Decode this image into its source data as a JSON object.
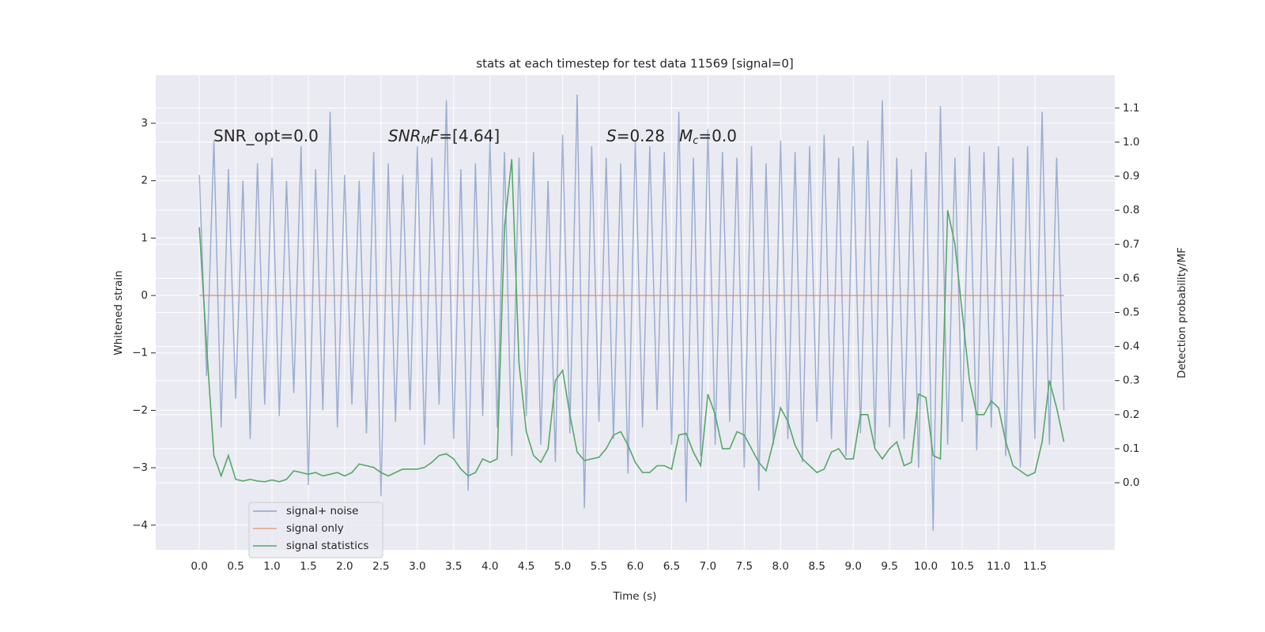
{
  "chart_data": {
    "type": "line",
    "title": "stats at each timestep for test data 11569 [signal=0]",
    "xlabel": "Time (s)",
    "ylabel": "Whitened strain",
    "y2label": "Detection probability/MF",
    "annotations": [
      [
        {
          "text": "SNR_opt=0.0",
          "style": "normal"
        }
      ],
      [
        {
          "text": "SNR",
          "style": "italic"
        },
        {
          "text": "M",
          "style": "sub"
        },
        {
          "text": "F",
          "style": "italic"
        },
        {
          "text": "=[4.64]",
          "style": "normal"
        }
      ],
      [
        {
          "text": "S",
          "style": "italic"
        },
        {
          "text": "=0.28",
          "style": "normal"
        }
      ],
      [
        {
          "text": "M",
          "style": "italic"
        },
        {
          "text": "c",
          "style": "sub"
        },
        {
          "text": "=0.0",
          "style": "normal"
        }
      ]
    ],
    "x": [
      0.0,
      0.1,
      0.2,
      0.3,
      0.4,
      0.5,
      0.6,
      0.7,
      0.8,
      0.9,
      1.0,
      1.1,
      1.2,
      1.3,
      1.4,
      1.5,
      1.6,
      1.7,
      1.8,
      1.9,
      2.0,
      2.1,
      2.2,
      2.3,
      2.4,
      2.5,
      2.6,
      2.7,
      2.8,
      2.9,
      3.0,
      3.1,
      3.2,
      3.3,
      3.4,
      3.5,
      3.6,
      3.7,
      3.8,
      3.9,
      4.0,
      4.1,
      4.2,
      4.3,
      4.4,
      4.5,
      4.6,
      4.7,
      4.8,
      4.9,
      5.0,
      5.1,
      5.2,
      5.3,
      5.4,
      5.5,
      5.6,
      5.7,
      5.8,
      5.9,
      6.0,
      6.1,
      6.2,
      6.3,
      6.4,
      6.5,
      6.6,
      6.7,
      6.8,
      6.9,
      7.0,
      7.1,
      7.2,
      7.3,
      7.4,
      7.5,
      7.6,
      7.7,
      7.8,
      7.9,
      8.0,
      8.1,
      8.2,
      8.3,
      8.4,
      8.5,
      8.6,
      8.7,
      8.8,
      8.9,
      9.0,
      9.1,
      9.2,
      9.3,
      9.4,
      9.5,
      9.6,
      9.7,
      9.8,
      9.9,
      10.0,
      10.1,
      10.2,
      10.3,
      10.4,
      10.5,
      10.6,
      10.7,
      10.8,
      10.9,
      11.0,
      11.1,
      11.2,
      11.3,
      11.4,
      11.5,
      11.6,
      11.7,
      11.8,
      11.9
    ],
    "series": [
      {
        "name": "signal+ noise",
        "color": "#4c72b0",
        "axis": "y",
        "values": [
          2.1,
          -1.4,
          2.7,
          -2.3,
          2.2,
          -1.8,
          2.0,
          -2.5,
          2.3,
          -1.9,
          2.4,
          -2.1,
          2.0,
          -1.7,
          2.6,
          -3.3,
          2.2,
          -2.0,
          3.2,
          -2.3,
          2.1,
          -1.9,
          2.0,
          -2.4,
          2.5,
          -3.5,
          2.3,
          -2.2,
          2.1,
          -2.0,
          2.6,
          -2.6,
          2.4,
          -1.9,
          3.4,
          -2.5,
          2.2,
          -3.4,
          2.3,
          -2.1,
          2.7,
          -2.3,
          2.5,
          -2.8,
          2.4,
          -2.1,
          2.5,
          -2.6,
          2.0,
          -2.9,
          2.8,
          -2.4,
          3.5,
          -3.7,
          2.6,
          -2.2,
          2.4,
          -2.5,
          2.3,
          -3.1,
          2.7,
          -2.3,
          2.6,
          -2.0,
          2.5,
          -2.6,
          3.2,
          -3.6,
          2.4,
          -2.8,
          2.9,
          -2.6,
          2.5,
          -2.2,
          2.4,
          -3.0,
          2.6,
          -3.4,
          2.3,
          -2.6,
          2.7,
          -2.5,
          2.5,
          -2.9,
          2.6,
          -2.2,
          2.8,
          -2.5,
          2.4,
          -2.8,
          2.6,
          -2.4,
          2.7,
          -2.6,
          3.4,
          -2.3,
          2.4,
          -2.5,
          2.2,
          -3.0,
          2.5,
          -4.1,
          3.3,
          -2.6,
          2.4,
          -2.2,
          2.6,
          -2.7,
          2.5,
          -2.3,
          2.6,
          -2.8,
          2.4,
          -3.0,
          2.6,
          -2.5,
          3.2,
          -2.6,
          2.4,
          -2.0
        ]
      },
      {
        "name": "signal only",
        "color": "#dd8452",
        "axis": "y",
        "values": [
          0,
          0,
          0,
          0,
          0,
          0,
          0,
          0,
          0,
          0,
          0,
          0,
          0,
          0,
          0,
          0,
          0,
          0,
          0,
          0,
          0,
          0,
          0,
          0,
          0,
          0,
          0,
          0,
          0,
          0,
          0,
          0,
          0,
          0,
          0,
          0,
          0,
          0,
          0,
          0,
          0,
          0,
          0,
          0,
          0,
          0,
          0,
          0,
          0,
          0,
          0,
          0,
          0,
          0,
          0,
          0,
          0,
          0,
          0,
          0,
          0,
          0,
          0,
          0,
          0,
          0,
          0,
          0,
          0,
          0,
          0,
          0,
          0,
          0,
          0,
          0,
          0,
          0,
          0,
          0,
          0,
          0,
          0,
          0,
          0,
          0,
          0,
          0,
          0,
          0,
          0,
          0,
          0,
          0,
          0,
          0,
          0,
          0,
          0,
          0,
          0,
          0,
          0,
          0,
          0,
          0,
          0,
          0,
          0,
          0,
          0,
          0,
          0,
          0,
          0,
          0,
          0,
          0,
          0,
          0
        ]
      },
      {
        "name": "signal statistics",
        "color": "#55a868",
        "axis": "y2",
        "values": [
          0.75,
          0.4,
          0.08,
          0.02,
          0.08,
          0.01,
          0.005,
          0.01,
          0.005,
          0.003,
          0.008,
          0.003,
          0.01,
          0.035,
          0.03,
          0.025,
          0.03,
          0.02,
          0.025,
          0.03,
          0.02,
          0.03,
          0.055,
          0.05,
          0.045,
          0.03,
          0.02,
          0.03,
          0.04,
          0.04,
          0.04,
          0.045,
          0.06,
          0.08,
          0.085,
          0.07,
          0.04,
          0.02,
          0.03,
          0.07,
          0.06,
          0.07,
          0.75,
          0.95,
          0.35,
          0.15,
          0.08,
          0.06,
          0.1,
          0.3,
          0.33,
          0.2,
          0.09,
          0.065,
          0.07,
          0.075,
          0.1,
          0.14,
          0.15,
          0.11,
          0.06,
          0.03,
          0.03,
          0.05,
          0.05,
          0.04,
          0.14,
          0.145,
          0.09,
          0.05,
          0.26,
          0.2,
          0.1,
          0.1,
          0.15,
          0.14,
          0.1,
          0.06,
          0.035,
          0.12,
          0.22,
          0.18,
          0.11,
          0.07,
          0.05,
          0.03,
          0.04,
          0.09,
          0.1,
          0.07,
          0.07,
          0.2,
          0.2,
          0.1,
          0.07,
          0.1,
          0.12,
          0.05,
          0.06,
          0.26,
          0.25,
          0.08,
          0.07,
          0.8,
          0.7,
          0.5,
          0.3,
          0.2,
          0.2,
          0.24,
          0.22,
          0.12,
          0.05,
          0.035,
          0.02,
          0.03,
          0.12,
          0.3,
          0.22,
          0.12
        ]
      }
    ],
    "xlim": [
      -0.6,
      12.6
    ],
    "ylim": [
      -4.43,
      3.84
    ],
    "y2lim": [
      -0.197,
      1.197
    ],
    "xticks": [
      {
        "value": 0,
        "label": "0.0"
      },
      0.5,
      {
        "value": 1,
        "label": "1.0"
      },
      1.5,
      {
        "value": 2,
        "label": "2.0"
      },
      2.5,
      {
        "value": 3,
        "label": "3.0"
      },
      3.5,
      {
        "value": 4,
        "label": "4.0"
      },
      4.5,
      {
        "value": 5,
        "label": "5.0"
      },
      5.5,
      {
        "value": 6,
        "label": "6.0"
      },
      6.5,
      {
        "value": 7,
        "label": "7.0"
      },
      7.5,
      {
        "value": 8,
        "label": "8.0"
      },
      8.5,
      {
        "value": 9,
        "label": "9.0"
      },
      9.5,
      {
        "value": 10,
        "label": "10.0"
      },
      10.5,
      {
        "value": 11,
        "label": "11.0"
      },
      11.5
    ],
    "yticks": [
      {
        "value": -4,
        "label": "−4"
      },
      {
        "value": -3,
        "label": "−3"
      },
      {
        "value": -2,
        "label": "−2"
      },
      {
        "value": -1,
        "label": "−1"
      },
      0,
      1,
      2,
      3
    ],
    "y2ticks": [
      {
        "value": 0,
        "label": "0.0"
      },
      0.1,
      0.2,
      0.3,
      0.4,
      0.5,
      0.6,
      0.7,
      0.8,
      0.9,
      {
        "value": 1,
        "label": "1.0"
      },
      1.1
    ],
    "grid": true,
    "legend": "lower left"
  }
}
